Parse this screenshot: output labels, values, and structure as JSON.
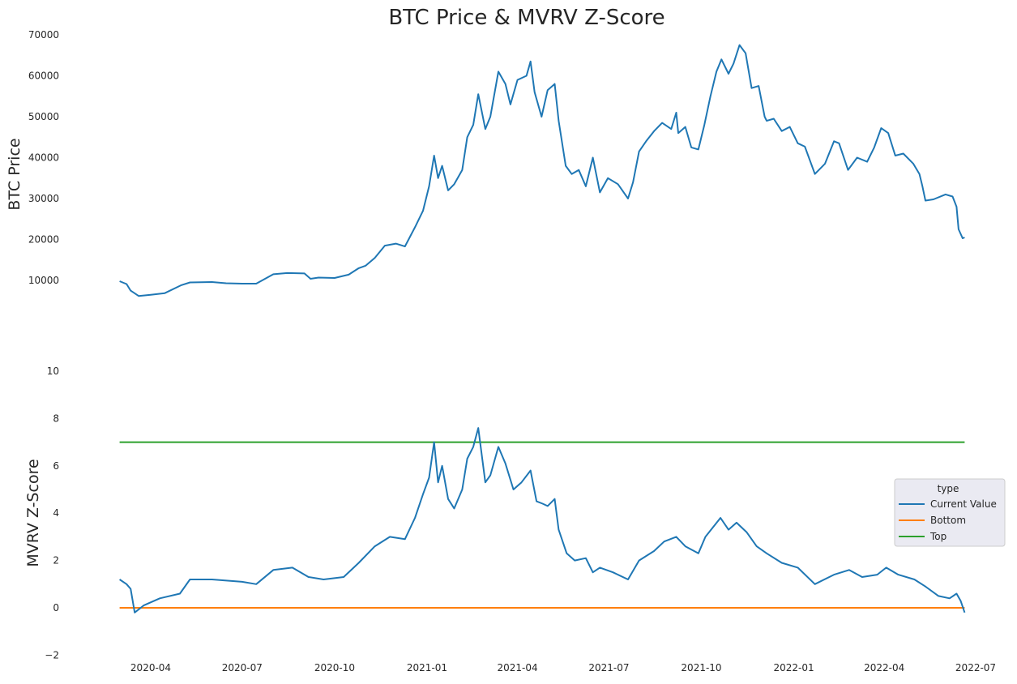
{
  "title": "BTC Price & MVRV Z-Score",
  "colors": {
    "current": "#1f77b4",
    "bottom": "#ff7f0e",
    "top": "#2ca02c",
    "legend_bg": "#eaeaf2",
    "legend_border": "#cccccc"
  },
  "chart_data": [
    {
      "type": "line",
      "ylabel": "BTC  Price",
      "ylim": [
        0,
        70000
      ],
      "yticks": [
        "10000",
        "20000",
        "30000",
        "40000",
        "50000",
        "60000",
        "70000"
      ],
      "grid": false,
      "series": [
        {
          "x": [
            "2020-03-01",
            "2020-03-08",
            "2020-03-12",
            "2020-03-20",
            "2020-04-01",
            "2020-04-15",
            "2020-05-01",
            "2020-05-10",
            "2020-06-01",
            "2020-06-15",
            "2020-07-01",
            "2020-07-15",
            "2020-08-01",
            "2020-08-15",
            "2020-09-01",
            "2020-09-07",
            "2020-09-15",
            "2020-10-01",
            "2020-10-15",
            "2020-10-25",
            "2020-11-01",
            "2020-11-10",
            "2020-11-20",
            "2020-12-01",
            "2020-12-10",
            "2020-12-20",
            "2020-12-28",
            "2021-01-03",
            "2021-01-08",
            "2021-01-12",
            "2021-01-16",
            "2021-01-22",
            "2021-01-28",
            "2021-02-05",
            "2021-02-10",
            "2021-02-16",
            "2021-02-21",
            "2021-02-28",
            "2021-03-05",
            "2021-03-13",
            "2021-03-20",
            "2021-03-25",
            "2021-04-01",
            "2021-04-10",
            "2021-04-14",
            "2021-04-18",
            "2021-04-25",
            "2021-05-01",
            "2021-05-08",
            "2021-05-12",
            "2021-05-19",
            "2021-05-25",
            "2021-06-01",
            "2021-06-08",
            "2021-06-15",
            "2021-06-22",
            "2021-06-30",
            "2021-07-10",
            "2021-07-20",
            "2021-07-25",
            "2021-07-31",
            "2021-08-07",
            "2021-08-15",
            "2021-08-23",
            "2021-09-01",
            "2021-09-06",
            "2021-09-08",
            "2021-09-15",
            "2021-09-21",
            "2021-09-28",
            "2021-10-04",
            "2021-10-10",
            "2021-10-16",
            "2021-10-21",
            "2021-10-28",
            "2021-11-02",
            "2021-11-08",
            "2021-11-14",
            "2021-11-20",
            "2021-11-27",
            "2021-12-03",
            "2021-12-05",
            "2021-12-12",
            "2021-12-20",
            "2021-12-28",
            "2022-01-05",
            "2022-01-12",
            "2022-01-22",
            "2022-02-01",
            "2022-02-10",
            "2022-02-15",
            "2022-02-24",
            "2022-03-05",
            "2022-03-15",
            "2022-03-22",
            "2022-03-29",
            "2022-04-05",
            "2022-04-12",
            "2022-04-20",
            "2022-04-30",
            "2022-05-06",
            "2022-05-09",
            "2022-05-12",
            "2022-05-20",
            "2022-06-01",
            "2022-06-08",
            "2022-06-12",
            "2022-06-14",
            "2022-06-18",
            "2022-06-20"
          ],
          "values": [
            9800,
            9100,
            7500,
            6200,
            6500,
            6900,
            8800,
            9500,
            9600,
            9300,
            9200,
            9200,
            11500,
            11800,
            11700,
            10400,
            10700,
            10600,
            11400,
            13000,
            13600,
            15500,
            18500,
            19000,
            18300,
            23000,
            27000,
            33000,
            40500,
            35000,
            38000,
            32000,
            33500,
            37000,
            45000,
            48000,
            55500,
            47000,
            50000,
            61000,
            58000,
            53000,
            59000,
            60000,
            63500,
            56000,
            50000,
            56500,
            58000,
            49000,
            38000,
            36000,
            37000,
            33000,
            40000,
            31500,
            35000,
            33500,
            30000,
            34000,
            41500,
            44000,
            46500,
            48500,
            47000,
            51000,
            46000,
            47500,
            42500,
            42000,
            48000,
            55000,
            61000,
            64000,
            60500,
            63000,
            67500,
            65500,
            57000,
            57500,
            50000,
            49000,
            49500,
            46500,
            47500,
            43500,
            42700,
            36000,
            38500,
            44000,
            43500,
            37000,
            40000,
            39000,
            42500,
            47200,
            46000,
            40500,
            41000,
            38500,
            36000,
            33000,
            29500,
            29800,
            31000,
            30500,
            28000,
            22500,
            20300,
            20500
          ]
        }
      ]
    },
    {
      "type": "line",
      "ylabel": "MVRV Z-Score",
      "ylim": [
        -2,
        10
      ],
      "yticks": [
        "−2",
        "0",
        "2",
        "4",
        "6",
        "8",
        "10"
      ],
      "xticks": [
        "2020-04",
        "2020-07",
        "2020-10",
        "2021-01",
        "2021-04",
        "2021-07",
        "2021-10",
        "2022-01",
        "2022-04",
        "2022-07"
      ],
      "grid": false,
      "legend": {
        "title": "type",
        "placement": "right",
        "entries": [
          "Current Value",
          "Bottom",
          "Top"
        ]
      },
      "series": [
        {
          "name": "Current Value",
          "x": [
            "2020-03-01",
            "2020-03-08",
            "2020-03-12",
            "2020-03-16",
            "2020-03-25",
            "2020-04-10",
            "2020-04-30",
            "2020-05-10",
            "2020-06-01",
            "2020-07-01",
            "2020-07-15",
            "2020-08-01",
            "2020-08-20",
            "2020-09-05",
            "2020-09-20",
            "2020-10-10",
            "2020-10-25",
            "2020-11-10",
            "2020-11-25",
            "2020-12-10",
            "2020-12-20",
            "2020-12-28",
            "2021-01-03",
            "2021-01-08",
            "2021-01-12",
            "2021-01-16",
            "2021-01-22",
            "2021-01-28",
            "2021-02-05",
            "2021-02-10",
            "2021-02-16",
            "2021-02-21",
            "2021-02-28",
            "2021-03-05",
            "2021-03-13",
            "2021-03-20",
            "2021-03-28",
            "2021-04-05",
            "2021-04-14",
            "2021-04-20",
            "2021-04-26",
            "2021-05-01",
            "2021-05-08",
            "2021-05-12",
            "2021-05-20",
            "2021-05-28",
            "2021-06-08",
            "2021-06-15",
            "2021-06-22",
            "2021-07-05",
            "2021-07-20",
            "2021-07-31",
            "2021-08-15",
            "2021-08-25",
            "2021-09-06",
            "2021-09-15",
            "2021-09-28",
            "2021-10-05",
            "2021-10-20",
            "2021-10-28",
            "2021-11-05",
            "2021-11-15",
            "2021-11-25",
            "2021-12-05",
            "2021-12-20",
            "2022-01-05",
            "2022-01-22",
            "2022-02-10",
            "2022-02-25",
            "2022-03-10",
            "2022-03-25",
            "2022-04-03",
            "2022-04-15",
            "2022-05-01",
            "2022-05-12",
            "2022-05-25",
            "2022-06-05",
            "2022-06-12",
            "2022-06-16",
            "2022-06-20"
          ],
          "values": [
            1.2,
            1.0,
            0.8,
            -0.2,
            0.1,
            0.4,
            0.6,
            1.2,
            1.2,
            1.1,
            1.0,
            1.6,
            1.7,
            1.3,
            1.2,
            1.3,
            1.9,
            2.6,
            3.0,
            2.9,
            3.8,
            4.8,
            5.5,
            7.0,
            5.3,
            6.0,
            4.6,
            4.2,
            5.0,
            6.3,
            6.8,
            7.6,
            5.3,
            5.6,
            6.8,
            6.1,
            5.0,
            5.3,
            5.8,
            4.5,
            4.4,
            4.3,
            4.6,
            3.3,
            2.3,
            2.0,
            2.1,
            1.5,
            1.7,
            1.5,
            1.2,
            2.0,
            2.4,
            2.8,
            3.0,
            2.6,
            2.3,
            3.0,
            3.8,
            3.3,
            3.6,
            3.2,
            2.6,
            2.3,
            1.9,
            1.7,
            1.0,
            1.4,
            1.6,
            1.3,
            1.4,
            1.7,
            1.4,
            1.2,
            0.9,
            0.5,
            0.4,
            0.6,
            0.3,
            -0.2
          ]
        },
        {
          "name": "Bottom",
          "x": [
            "2020-03-01",
            "2022-06-20"
          ],
          "values": [
            0,
            0
          ]
        },
        {
          "name": "Top",
          "x": [
            "2020-03-01",
            "2022-06-20"
          ],
          "values": [
            7.0,
            7.0
          ]
        }
      ]
    }
  ]
}
